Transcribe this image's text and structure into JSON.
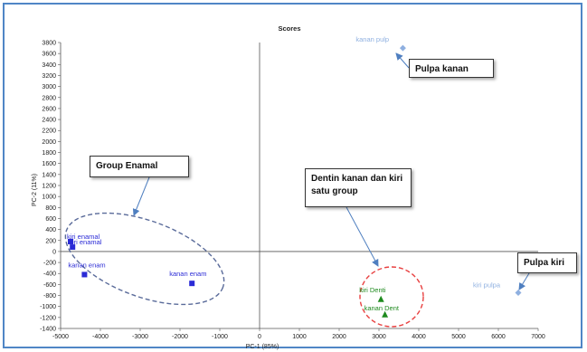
{
  "chart_data": {
    "type": "scatter",
    "title": "Scores",
    "xlabel": "PC-1 (85%)",
    "ylabel": "PC-2 (11%)",
    "xlim": [
      -5000,
      7000
    ],
    "ylim": [
      -1400,
      3800
    ],
    "xticks": [
      -5000,
      -4000,
      -3000,
      -2000,
      -1000,
      0,
      1000,
      2000,
      3000,
      4000,
      5000,
      6000,
      7000
    ],
    "yticks": [
      -1400,
      -1200,
      -1000,
      -800,
      -600,
      -400,
      -200,
      0,
      200,
      400,
      600,
      800,
      1000,
      1200,
      1400,
      1600,
      1800,
      2000,
      2200,
      2400,
      2600,
      2800,
      3000,
      3200,
      3400,
      3600,
      3800
    ],
    "grid": false,
    "series": [
      {
        "color": "#2b2bd6",
        "marker": "square",
        "points": [
          {
            "label": "kiri enamal",
            "x": -4750,
            "y": 180
          },
          {
            "label": "kiri enamal",
            "x": -4700,
            "y": 80
          },
          {
            "label": "kanan enam",
            "x": -4400,
            "y": -420
          },
          {
            "label": "kanan enam",
            "x": -1700,
            "y": -580
          }
        ]
      },
      {
        "color": "#1e8a1e",
        "marker": "triangle",
        "points": [
          {
            "label": "kiri Denti",
            "x": 3050,
            "y": -870
          },
          {
            "label": "kanan Dent",
            "x": 3150,
            "y": -1150
          }
        ]
      },
      {
        "color": "#8fb0e0",
        "marker": "diamond",
        "points": [
          {
            "label": "kanan pulp",
            "x": 3600,
            "y": 3700
          },
          {
            "label": "kiri pulpa",
            "x": 6500,
            "y": -750
          }
        ]
      }
    ],
    "annotations": [
      {
        "text": "Pulpa kanan"
      },
      {
        "text": "Group Enamal"
      },
      {
        "text": "Dentin kanan dan kiri satu group"
      },
      {
        "text": "Pulpa kiri"
      }
    ]
  },
  "colors": {
    "frame": "#4f86c6",
    "enamel_ellipse": "#5a6b9a",
    "dentin_ellipse": "#e84040",
    "arrow": "#4f7fc0"
  }
}
